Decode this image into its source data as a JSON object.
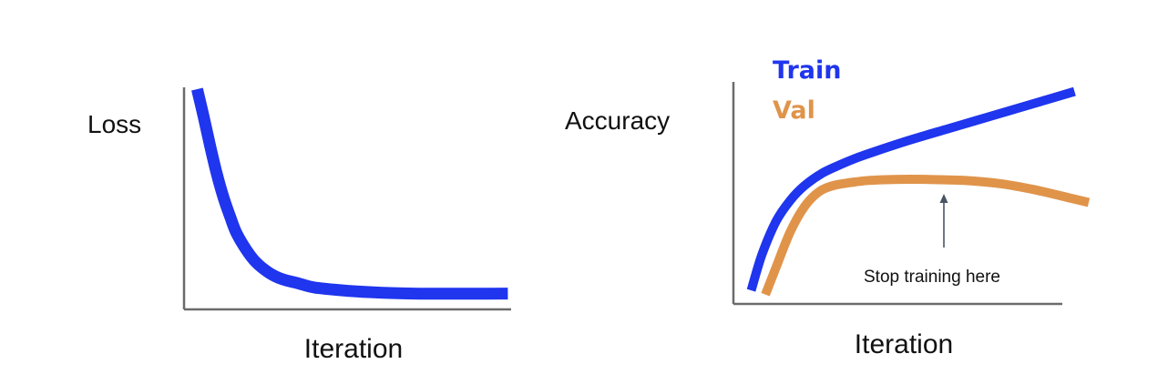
{
  "colors": {
    "train": "#1f35ee",
    "val": "#e0944a",
    "axis": "#6b6b6b",
    "arrow": "#4a5563"
  },
  "chart_data": [
    {
      "type": "line",
      "title": "",
      "xlabel": "Iteration",
      "ylabel": "Loss",
      "grid": false,
      "xlim": [
        0,
        100
      ],
      "ylim": [
        0,
        100
      ],
      "series": [
        {
          "name": "",
          "color_key": "train",
          "x": [
            4,
            6,
            8,
            10,
            12,
            14,
            16,
            19,
            22,
            26,
            30,
            35,
            40,
            50,
            60,
            70,
            80,
            90,
            99
          ],
          "y": [
            100,
            87,
            73,
            60,
            49,
            40,
            32,
            24,
            18,
            13,
            10,
            8,
            6,
            4.5,
            3.6,
            3.2,
            3.1,
            3.1,
            3.2
          ]
        }
      ]
    },
    {
      "type": "line",
      "title": "",
      "xlabel": "Iteration",
      "ylabel": "Accuracy",
      "grid": false,
      "xlim": [
        0,
        100
      ],
      "ylim": [
        0,
        100
      ],
      "legend": {
        "placement": "top-left",
        "entries": [
          "Train",
          "Val"
        ]
      },
      "annotation": {
        "text": "Stop training here",
        "x": 64
      },
      "series": [
        {
          "name": "Train",
          "color_key": "train",
          "x": [
            5,
            8,
            12,
            16,
            20,
            25,
            30,
            35,
            40,
            50,
            60,
            70,
            80,
            90,
            96
          ],
          "y": [
            3,
            20,
            36,
            46,
            53,
            59,
            63,
            66.5,
            69.5,
            75,
            80,
            85,
            90,
            95,
            98
          ]
        },
        {
          "name": "Val",
          "color_key": "val",
          "x": [
            9,
            12,
            16,
            20,
            24,
            28,
            33,
            38,
            45,
            55,
            65,
            75,
            85,
            95,
            100
          ],
          "y": [
            1,
            14,
            31,
            43,
            50,
            53,
            54.5,
            55.5,
            56,
            56,
            55.5,
            54,
            51,
            47,
            45
          ]
        }
      ]
    }
  ]
}
